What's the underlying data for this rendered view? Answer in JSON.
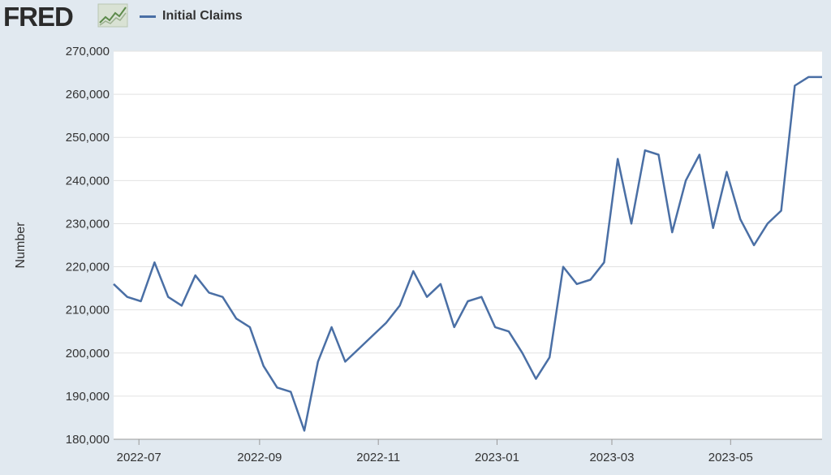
{
  "header": {
    "logo": "FRED",
    "legend_label": "Initial Claims",
    "series_color": "#4a6fa5"
  },
  "chart_data": {
    "type": "line",
    "title": "",
    "xlabel": "",
    "ylabel": "Number",
    "ylim": [
      180000,
      270000
    ],
    "xlim": [
      "2022-06-18",
      "2023-06-17"
    ],
    "grid": true,
    "legend": "top-left",
    "yticks": [
      180000,
      190000,
      200000,
      210000,
      220000,
      230000,
      240000,
      250000,
      260000,
      270000
    ],
    "ytick_labels": [
      "180,000",
      "190,000",
      "200,000",
      "210,000",
      "220,000",
      "230,000",
      "240,000",
      "250,000",
      "260,000",
      "270,000"
    ],
    "xticks": [
      "2022-07-01",
      "2022-09-01",
      "2022-11-01",
      "2023-01-01",
      "2023-03-01",
      "2023-05-01"
    ],
    "xtick_labels": [
      "2022-07",
      "2022-09",
      "2022-11",
      "2023-01",
      "2023-03",
      "2023-05"
    ],
    "series": [
      {
        "name": "Initial Claims",
        "color": "#4a6fa5",
        "x": [
          "2022-06-18",
          "2022-06-25",
          "2022-07-02",
          "2022-07-09",
          "2022-07-16",
          "2022-07-23",
          "2022-07-30",
          "2022-08-06",
          "2022-08-13",
          "2022-08-20",
          "2022-08-27",
          "2022-09-03",
          "2022-09-10",
          "2022-09-17",
          "2022-09-24",
          "2022-10-01",
          "2022-10-08",
          "2022-10-15",
          "2022-10-22",
          "2022-10-29",
          "2022-11-05",
          "2022-11-12",
          "2022-11-19",
          "2022-11-26",
          "2022-12-03",
          "2022-12-10",
          "2022-12-17",
          "2022-12-24",
          "2022-12-31",
          "2023-01-07",
          "2023-01-14",
          "2023-01-21",
          "2023-01-28",
          "2023-02-04",
          "2023-02-11",
          "2023-02-18",
          "2023-02-25",
          "2023-03-04",
          "2023-03-11",
          "2023-03-18",
          "2023-03-25",
          "2023-04-01",
          "2023-04-08",
          "2023-04-15",
          "2023-04-22",
          "2023-04-29",
          "2023-05-06",
          "2023-05-13",
          "2023-05-20",
          "2023-05-27",
          "2023-06-03",
          "2023-06-10",
          "2023-06-17"
        ],
        "y": [
          216000,
          213000,
          212000,
          221000,
          213000,
          211000,
          218000,
          214000,
          213000,
          208000,
          206000,
          197000,
          192000,
          191000,
          182000,
          198000,
          206000,
          198000,
          201000,
          204000,
          207000,
          211000,
          219000,
          213000,
          216000,
          206000,
          212000,
          213000,
          206000,
          205000,
          200000,
          194000,
          199000,
          220000,
          216000,
          217000,
          221000,
          245000,
          230000,
          247000,
          246000,
          228000,
          240000,
          246000,
          229000,
          242000,
          231000,
          225000,
          230000,
          233000,
          262000,
          264000,
          264000
        ]
      }
    ]
  }
}
